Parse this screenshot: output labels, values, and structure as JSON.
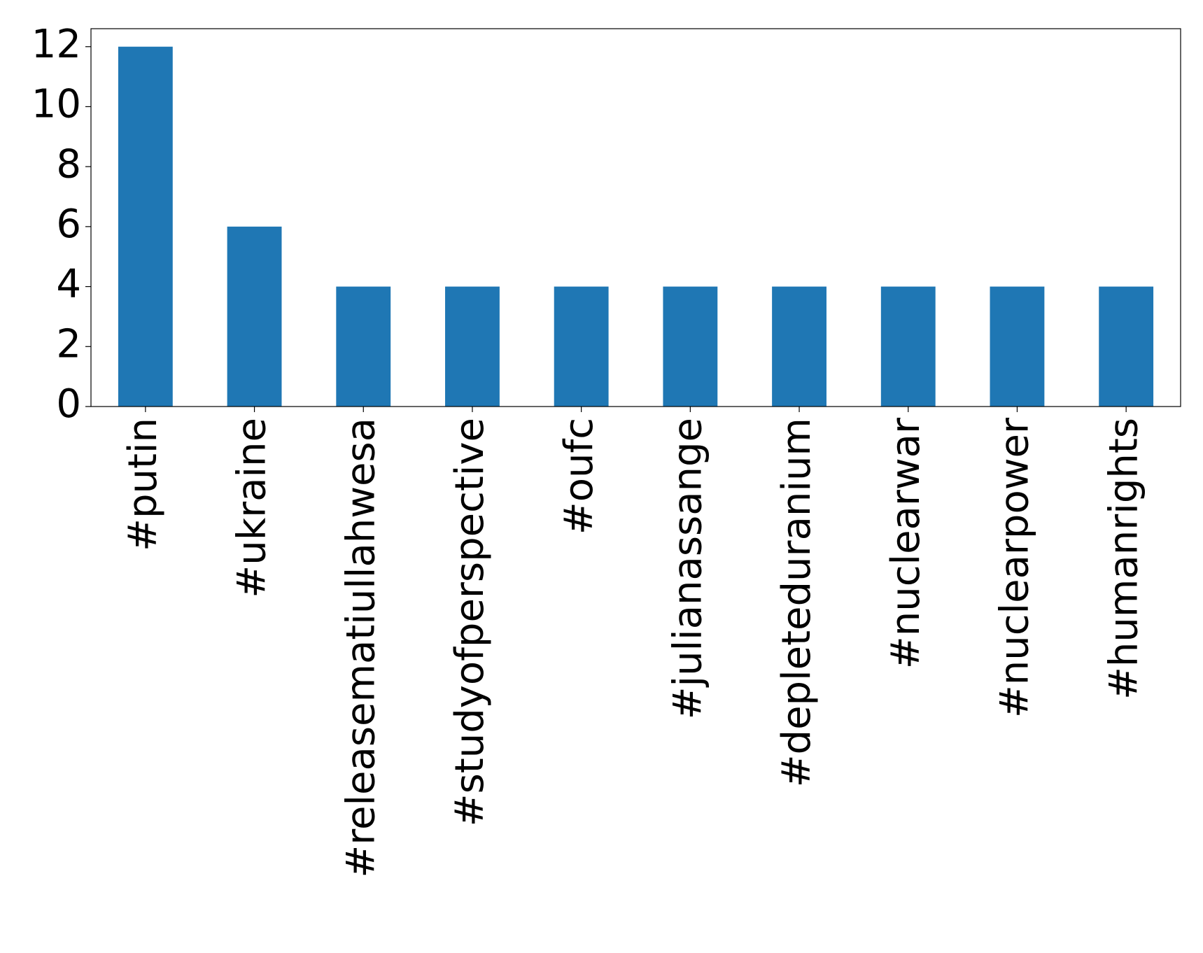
{
  "chart_data": {
    "type": "bar",
    "categories": [
      "#putin",
      "#ukraine",
      "#releasematiullahwesa",
      "#studyofperspective",
      "#oufc",
      "#julianassange",
      "#depleteduranium",
      "#nuclearwar",
      "#nuclearpower",
      "#humanrights"
    ],
    "values": [
      12,
      6,
      4,
      4,
      4,
      4,
      4,
      4,
      4,
      4
    ],
    "color": "#1f77b4",
    "ylim": [
      0,
      12.6
    ],
    "yticks": [
      0,
      2,
      4,
      6,
      8,
      10,
      12
    ],
    "grid": false
  }
}
